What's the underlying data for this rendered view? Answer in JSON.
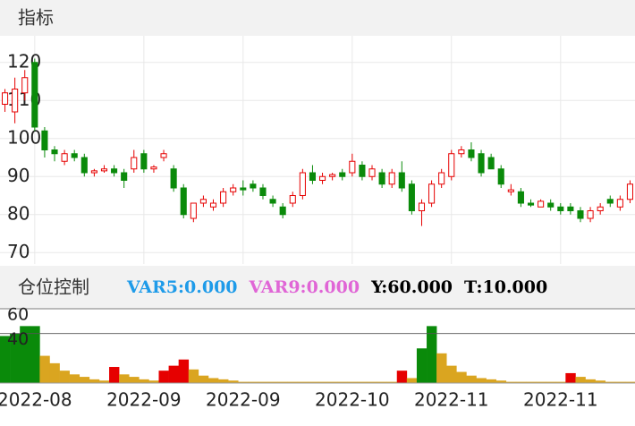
{
  "header": "指标",
  "chart_data": [
    {
      "type": "candlestick",
      "open": [
        109,
        107,
        112,
        120,
        102,
        97,
        94,
        96,
        95,
        91,
        91.5,
        92,
        91,
        92,
        96,
        92,
        95,
        92,
        87,
        79,
        83,
        82,
        83,
        86,
        87,
        88,
        87,
        84,
        82,
        83,
        85,
        91,
        89,
        90,
        91,
        91,
        93,
        90,
        91,
        88,
        91,
        88,
        81,
        83,
        88,
        90,
        96,
        97,
        96,
        95,
        92,
        86,
        86,
        83,
        82,
        83,
        82,
        82,
        81,
        79,
        81,
        84,
        82,
        84
      ],
      "high": [
        113,
        116,
        118,
        121,
        103,
        98,
        97,
        97,
        96,
        92,
        93,
        93,
        92,
        97,
        97,
        93,
        97,
        93,
        88,
        83,
        85,
        84,
        87,
        88,
        89,
        89,
        88,
        85,
        83,
        86,
        92,
        93,
        91,
        91,
        92,
        96,
        94,
        93,
        92,
        92,
        94,
        89,
        84,
        89,
        92,
        97,
        98,
        99,
        97,
        96,
        93,
        88,
        87,
        84,
        84,
        84,
        83,
        83,
        82,
        82,
        83,
        85,
        85,
        89
      ],
      "low": [
        107,
        104,
        110,
        102,
        95,
        94,
        93,
        94,
        90,
        90,
        91,
        90,
        87,
        91,
        91,
        91,
        94,
        86,
        79,
        78,
        82,
        81,
        82,
        85,
        85,
        86,
        84,
        82,
        79,
        82,
        84,
        88,
        88,
        89,
        89,
        90,
        89,
        89,
        87,
        87,
        86,
        80,
        77,
        82,
        87,
        89,
        95,
        94,
        90,
        92,
        87,
        85,
        82,
        82,
        82,
        81,
        80,
        80,
        78,
        78,
        80,
        82,
        81,
        83
      ],
      "close": [
        112,
        113,
        116,
        103,
        97,
        96,
        96,
        95,
        91,
        91.5,
        92,
        91,
        89,
        95,
        92,
        92.5,
        96,
        87,
        80,
        83,
        84,
        83,
        86,
        87,
        86.5,
        87,
        85,
        83,
        80,
        85,
        91,
        89,
        90,
        90.5,
        90,
        94,
        90,
        92,
        88,
        91,
        87,
        81,
        83,
        88,
        91,
        96,
        97,
        95,
        91,
        92,
        88,
        86.5,
        83,
        82.5,
        83.5,
        82,
        81,
        81,
        79,
        81,
        82,
        83,
        84,
        88
      ],
      "up_color": "#e60000",
      "down_color": "#0a8a0a",
      "ylim": [
        67,
        127
      ],
      "yticks": [
        70,
        80,
        90,
        100,
        110,
        120
      ],
      "grid": true
    },
    {
      "type": "bar",
      "title": "仓位控制",
      "indicators": [
        {
          "text": "VAR5:0.000",
          "color": "#1e9be9"
        },
        {
          "text": "VAR9:0.000",
          "color": "#e066d6"
        },
        {
          "text": "Y:60.000",
          "color": "#000000"
        },
        {
          "text": "T:10.000",
          "color": "#000000"
        }
      ],
      "categories": [
        null,
        null,
        null,
        "2022-08",
        null,
        null,
        null,
        null,
        null,
        null,
        null,
        null,
        null,
        null,
        "2022-09",
        null,
        null,
        null,
        null,
        null,
        null,
        null,
        null,
        null,
        "2022-09",
        null,
        null,
        null,
        null,
        null,
        null,
        null,
        null,
        null,
        null,
        "2022-10",
        null,
        null,
        null,
        null,
        null,
        null,
        null,
        null,
        null,
        "2022-11",
        null,
        null,
        null,
        null,
        null,
        null,
        null,
        null,
        null,
        null,
        "2022-11",
        null,
        null,
        null,
        null,
        null,
        null,
        null
      ],
      "values": [
        38,
        40,
        46,
        46,
        22,
        16,
        10,
        7,
        5,
        3,
        2,
        13,
        7,
        5,
        3,
        2,
        10,
        14,
        19,
        11,
        6,
        4,
        3,
        2,
        1,
        1,
        1,
        1,
        1,
        1,
        1,
        1,
        1,
        1,
        1,
        1,
        1,
        1,
        1,
        1,
        10,
        4,
        28,
        46,
        24,
        14,
        9,
        6,
        4,
        3,
        2,
        1,
        1,
        1,
        1,
        1,
        1,
        8,
        5,
        3,
        2,
        1,
        1,
        1
      ],
      "colors": [
        "#0a8a0a",
        "#0a8a0a",
        "#0a8a0a",
        "#0a8a0a",
        "#daa520",
        "#daa520",
        "#daa520",
        "#daa520",
        "#daa520",
        "#daa520",
        "#daa520",
        "#e60000",
        "#daa520",
        "#daa520",
        "#daa520",
        "#daa520",
        "#e60000",
        "#e60000",
        "#e60000",
        "#daa520",
        "#daa520",
        "#daa520",
        "#daa520",
        "#daa520",
        "#daa520",
        "#daa520",
        "#daa520",
        "#daa520",
        "#daa520",
        "#daa520",
        "#daa520",
        "#daa520",
        "#daa520",
        "#daa520",
        "#daa520",
        "#daa520",
        "#daa520",
        "#daa520",
        "#daa520",
        "#daa520",
        "#e60000",
        "#daa520",
        "#0a8a0a",
        "#0a8a0a",
        "#daa520",
        "#daa520",
        "#daa520",
        "#daa520",
        "#daa520",
        "#daa520",
        "#daa520",
        "#daa520",
        "#daa520",
        "#daa520",
        "#daa520",
        "#daa520",
        "#daa520",
        "#e60000",
        "#daa520",
        "#daa520",
        "#daa520",
        "#daa520",
        "#daa520",
        "#daa520"
      ],
      "ylim": [
        0,
        60
      ],
      "yticks": [
        60,
        40
      ],
      "grid": true
    }
  ]
}
